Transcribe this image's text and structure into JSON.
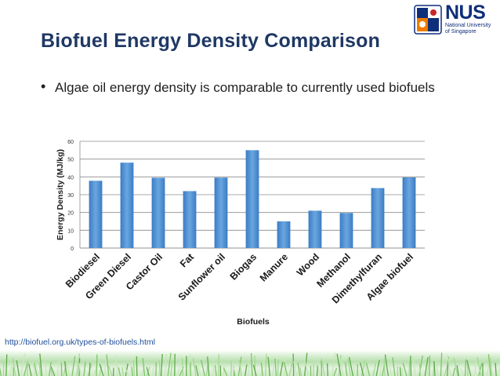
{
  "slide": {
    "title": "Biofuel Energy Density Comparison",
    "bullet": "Algae oil energy density is comparable to currently used biofuels",
    "source_link": "http://biofuel.org.uk/types-of-biofuels.html"
  },
  "logo": {
    "wordmark": "NUS",
    "line1": "National University",
    "line2": "of Singapore"
  },
  "colors": {
    "title": "#1f3864",
    "bar": "#4f8fd0",
    "nus_blue": "#0f2f7a",
    "nus_orange": "#ef7c00"
  },
  "chart_data": {
    "type": "bar",
    "title": "",
    "xlabel": "Biofuels",
    "ylabel": "Energy Density (MJ/kg)",
    "ylim": [
      0,
      60
    ],
    "yticks": [
      0,
      10,
      20,
      30,
      40,
      50,
      60
    ],
    "grid": true,
    "categories": [
      "Biodiesel",
      "Green Diesel",
      "Castor Oil",
      "Fat",
      "Sunflower oil",
      "Biogas",
      "Manure",
      "Wood",
      "Methanol",
      "Dimethylfuran",
      "Algae biofuel"
    ],
    "values": [
      37.8,
      48,
      39.5,
      32,
      39.6,
      55,
      15,
      21,
      19.7,
      33.7,
      39.7
    ]
  }
}
